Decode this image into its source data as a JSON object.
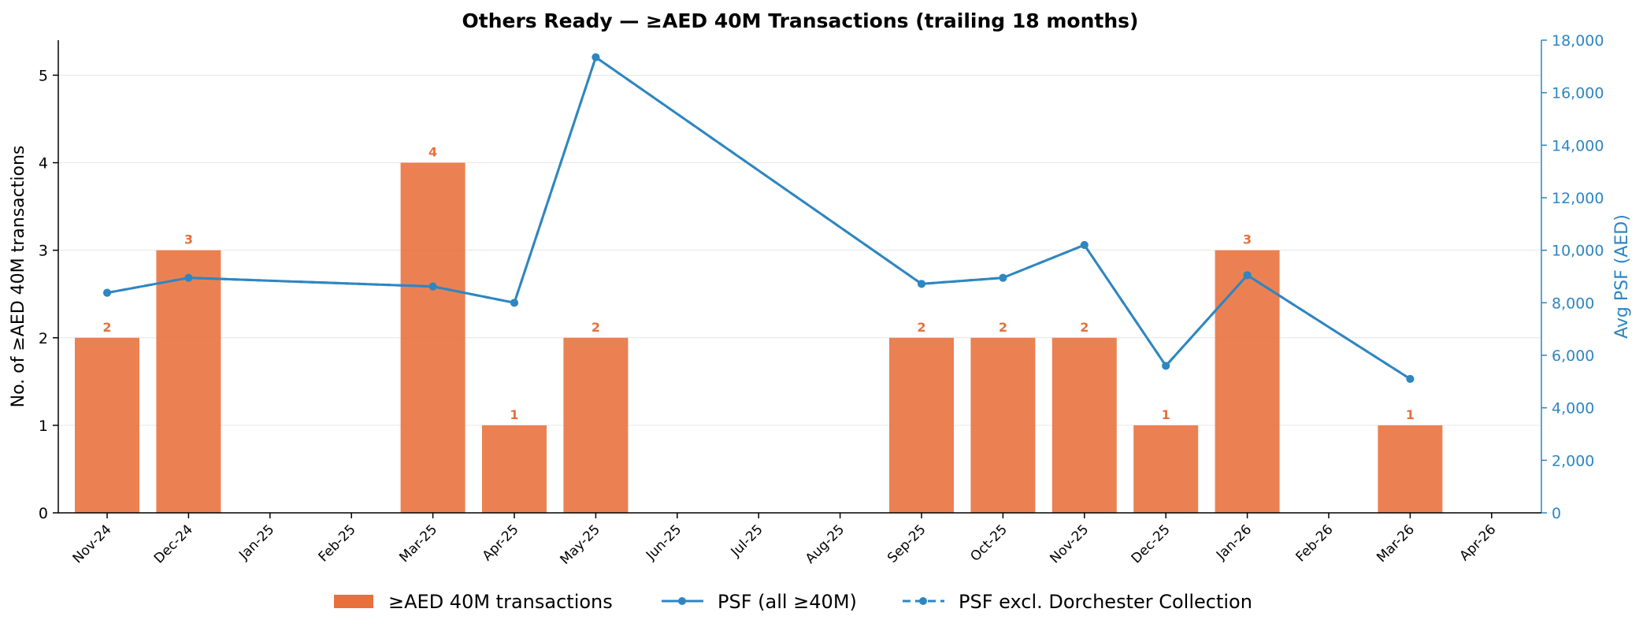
{
  "chart_data": {
    "type": "bar+line",
    "title": "Others Ready — ≥AED 40M Transactions (trailing 18 months)",
    "ylabel_left": "No. of ≥AED 40M transactions",
    "ylabel_right": "Avg PSF (AED)",
    "categories": [
      "Nov-24",
      "Dec-24",
      "Jan-25",
      "Feb-25",
      "Mar-25",
      "Apr-25",
      "May-25",
      "Jun-25",
      "Jul-25",
      "Aug-25",
      "Sep-25",
      "Oct-25",
      "Nov-25",
      "Dec-25",
      "Jan-26",
      "Feb-26",
      "Mar-26",
      "Apr-26"
    ],
    "ylim_left": [
      0,
      5.4
    ],
    "yticks_left": [
      "0",
      "1",
      "2",
      "3",
      "4",
      "5"
    ],
    "ylim_right": [
      0,
      18000
    ],
    "yticks_right": [
      "0",
      "2,000",
      "4,000",
      "6,000",
      "8,000",
      "10,000",
      "12,000",
      "14,000",
      "16,000",
      "18,000"
    ],
    "bars": {
      "name": "≥AED 40M transactions",
      "color": "#e8703a",
      "values": [
        2,
        3,
        0,
        0,
        4,
        1,
        2,
        0,
        0,
        0,
        2,
        2,
        2,
        1,
        3,
        0,
        1,
        0
      ],
      "labels": [
        "2",
        "3",
        "",
        "",
        "4",
        "1",
        "2",
        "",
        "",
        "",
        "2",
        "2",
        "2",
        "1",
        "3",
        "",
        "1",
        ""
      ]
    },
    "line_all": {
      "name": "PSF (all ≥40M)",
      "color": "#2e86c1",
      "values": [
        8380,
        8950,
        null,
        null,
        8620,
        8000,
        17350,
        null,
        null,
        null,
        8720,
        8950,
        10200,
        5600,
        9050,
        null,
        5100,
        null
      ]
    },
    "line_excl": {
      "name": "PSF excl. Dorchester Collection",
      "color": "#2e86c1",
      "values": [
        8380,
        8950,
        null,
        null,
        8620,
        8000,
        17350,
        null,
        null,
        null,
        8720,
        8950,
        10200,
        5600,
        9050,
        null,
        5100,
        null
      ]
    },
    "legend": [
      "≥AED 40M transactions",
      "PSF (all ≥40M)",
      "PSF excl. Dorchester Collection"
    ],
    "legend_position": "bottom-center"
  }
}
